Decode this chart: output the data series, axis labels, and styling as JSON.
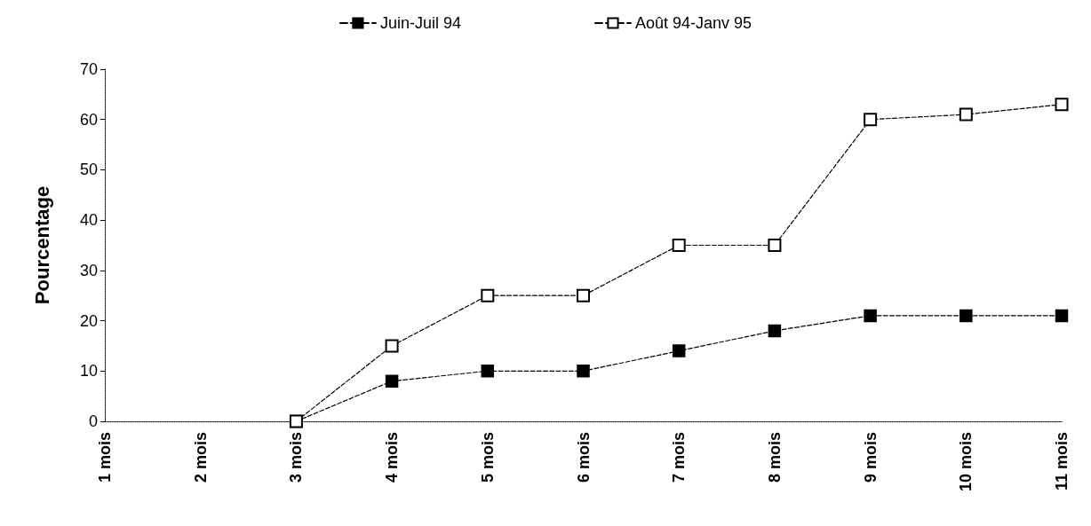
{
  "chart_data": {
    "type": "line",
    "ylabel": "Pourcentage",
    "categories": [
      "1 mois",
      "2 mois",
      "3 mois",
      "4 mois",
      "5 mois",
      "6 mois",
      "7 mois",
      "8 mois",
      "9 mois",
      "10 mois",
      "11 mois"
    ],
    "series": [
      {
        "name": "Juin-Juil 94",
        "color": "#000000",
        "values": [
          null,
          null,
          0,
          8,
          10,
          10,
          14,
          18,
          21,
          21,
          21
        ]
      },
      {
        "name": "Août 94-Janv 95",
        "color": "#000000",
        "values": [
          null,
          null,
          0,
          15,
          25,
          25,
          35,
          35,
          60,
          61,
          63
        ]
      }
    ],
    "ylim": [
      0,
      70
    ],
    "yticks": [
      0,
      10,
      20,
      30,
      40,
      50,
      60,
      70
    ],
    "grid": false,
    "legend": "top",
    "marker": "square",
    "line_style": "dashed"
  }
}
